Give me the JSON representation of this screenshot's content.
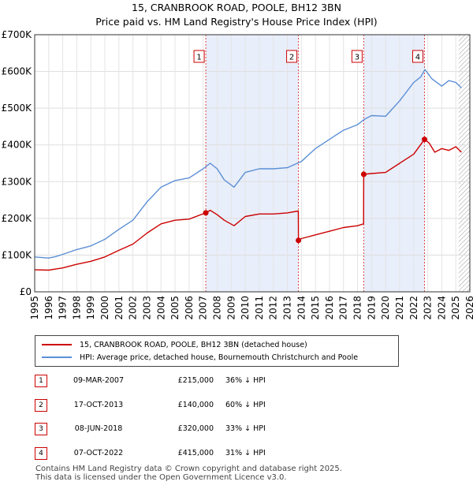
{
  "chart_data": {
    "type": "line",
    "title": "15, CRANBROOK ROAD, POOLE, BH12 3BN",
    "subtitle": "Price paid vs. HM Land Registry's House Price Index (HPI)",
    "xlim": [
      1995,
      2026
    ],
    "ylim": [
      0,
      700000
    ],
    "x_ticks": [
      "1995",
      "1996",
      "1997",
      "1998",
      "1999",
      "2000",
      "2001",
      "2002",
      "2003",
      "2004",
      "2005",
      "2006",
      "2007",
      "2008",
      "2009",
      "2010",
      "2011",
      "2012",
      "2013",
      "2014",
      "2015",
      "2016",
      "2017",
      "2018",
      "2019",
      "2020",
      "2021",
      "2022",
      "2023",
      "2024",
      "2025",
      "2026"
    ],
    "y_ticks": [
      {
        "value": 0,
        "label": "£0"
      },
      {
        "value": 100000,
        "label": "£100K"
      },
      {
        "value": 200000,
        "label": "£200K"
      },
      {
        "value": 300000,
        "label": "£300K"
      },
      {
        "value": 400000,
        "label": "£400K"
      },
      {
        "value": 500000,
        "label": "£500K"
      },
      {
        "value": 600000,
        "label": "£600K"
      },
      {
        "value": 700000,
        "label": "£700K"
      }
    ],
    "shaded_periods": [
      [
        2007.19,
        2013.79
      ],
      [
        2018.44,
        2022.77
      ]
    ],
    "forecast_from": 2025.2,
    "series": [
      {
        "name": "15, CRANBROOK ROAD, POOLE, BH12 3BN (detached house)",
        "color": "#cc0000",
        "points": [
          [
            1995,
            60000
          ],
          [
            1996,
            59000
          ],
          [
            1996.5,
            62000
          ],
          [
            1997,
            65000
          ],
          [
            1998,
            75000
          ],
          [
            1999,
            83000
          ],
          [
            2000,
            95000
          ],
          [
            2001,
            113000
          ],
          [
            2002,
            130000
          ],
          [
            2003,
            160000
          ],
          [
            2004,
            185000
          ],
          [
            2005,
            195000
          ],
          [
            2006,
            198000
          ],
          [
            2007.19,
            215000
          ],
          [
            2007.5,
            222000
          ],
          [
            2008,
            210000
          ],
          [
            2008.5,
            195000
          ],
          [
            2009.2,
            180000
          ],
          [
            2010,
            205000
          ],
          [
            2011,
            212000
          ],
          [
            2012,
            212000
          ],
          [
            2013,
            215000
          ],
          [
            2013.78,
            220000
          ],
          [
            2013.79,
            140000
          ],
          [
            2014,
            145000
          ],
          [
            2015,
            155000
          ],
          [
            2016,
            165000
          ],
          [
            2017,
            175000
          ],
          [
            2018,
            180000
          ],
          [
            2018.43,
            185000
          ],
          [
            2018.44,
            320000
          ],
          [
            2019,
            322000
          ],
          [
            2020,
            325000
          ],
          [
            2021,
            350000
          ],
          [
            2022,
            375000
          ],
          [
            2022.77,
            415000
          ],
          [
            2023.1,
            405000
          ],
          [
            2023.5,
            380000
          ],
          [
            2024,
            390000
          ],
          [
            2024.5,
            385000
          ],
          [
            2025,
            395000
          ],
          [
            2025.4,
            380000
          ]
        ]
      },
      {
        "name": "HPI: Average price, detached house, Bournemouth Christchurch and Poole",
        "color": "#5b8fd6",
        "points": [
          [
            1995,
            95000
          ],
          [
            1996,
            92000
          ],
          [
            1996.5,
            96000
          ],
          [
            1997,
            102000
          ],
          [
            1998,
            115000
          ],
          [
            1999,
            125000
          ],
          [
            2000,
            143000
          ],
          [
            2001,
            170000
          ],
          [
            2002,
            195000
          ],
          [
            2003,
            245000
          ],
          [
            2004,
            285000
          ],
          [
            2005,
            303000
          ],
          [
            2006,
            310000
          ],
          [
            2007,
            335000
          ],
          [
            2007.5,
            350000
          ],
          [
            2008,
            335000
          ],
          [
            2008.5,
            305000
          ],
          [
            2009.2,
            285000
          ],
          [
            2010,
            325000
          ],
          [
            2011,
            335000
          ],
          [
            2012,
            335000
          ],
          [
            2013,
            338000
          ],
          [
            2014,
            355000
          ],
          [
            2015,
            390000
          ],
          [
            2016,
            415000
          ],
          [
            2017,
            440000
          ],
          [
            2018,
            455000
          ],
          [
            2018.5,
            470000
          ],
          [
            2019,
            480000
          ],
          [
            2020,
            478000
          ],
          [
            2021,
            520000
          ],
          [
            2022,
            570000
          ],
          [
            2022.5,
            585000
          ],
          [
            2022.8,
            605000
          ],
          [
            2023.3,
            580000
          ],
          [
            2024,
            560000
          ],
          [
            2024.5,
            575000
          ],
          [
            2025,
            570000
          ],
          [
            2025.4,
            555000
          ]
        ]
      }
    ],
    "sales": [
      {
        "id": "1",
        "x": 2007.19,
        "value": 215000
      },
      {
        "id": "2",
        "x": 2013.79,
        "value": 140000
      },
      {
        "id": "3",
        "x": 2018.44,
        "value": 320000
      },
      {
        "id": "4",
        "x": 2022.77,
        "value": 415000
      }
    ]
  },
  "legend": {
    "items": [
      {
        "label": "15, CRANBROOK ROAD, POOLE, BH12 3BN (detached house)",
        "color": "#cc0000"
      },
      {
        "label": "HPI: Average price, detached house, Bournemouth Christchurch and Poole",
        "color": "#5b8fd6"
      }
    ]
  },
  "transactions": [
    {
      "num": "1",
      "date": "09-MAR-2007",
      "price": "£215,000",
      "pct": "36% ↓ HPI"
    },
    {
      "num": "2",
      "date": "17-OCT-2013",
      "price": "£140,000",
      "pct": "60% ↓ HPI"
    },
    {
      "num": "3",
      "date": "08-JUN-2018",
      "price": "£320,000",
      "pct": "33% ↓ HPI"
    },
    {
      "num": "4",
      "date": "07-OCT-2022",
      "price": "£415,000",
      "pct": "31% ↓ HPI"
    }
  ],
  "footer": {
    "line1": "Contains HM Land Registry data © Crown copyright and database right 2025.",
    "line2": "This data is licensed under the Open Government Licence v3.0."
  }
}
